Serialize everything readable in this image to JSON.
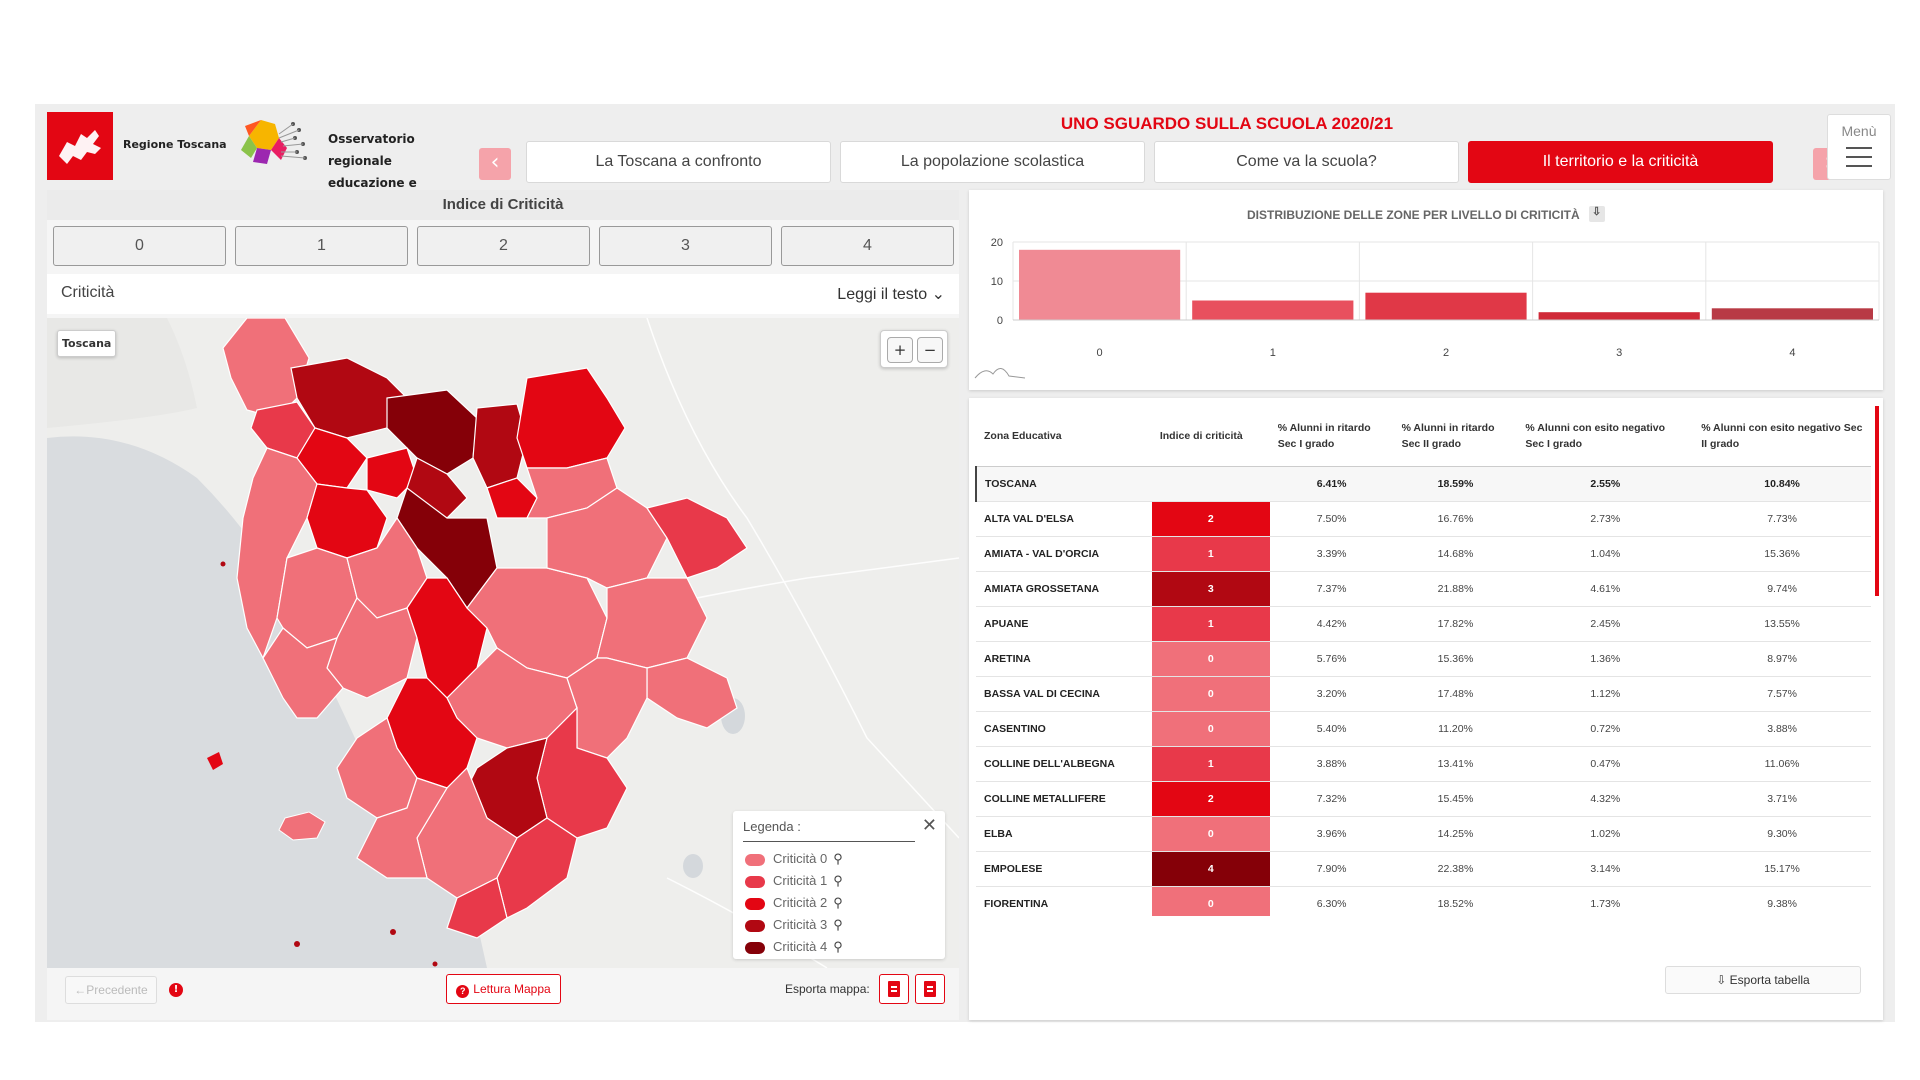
{
  "header": {
    "region_name": "Regione Toscana",
    "observatory_name": "Osservatorio regionale educazione e istruzione",
    "title": "UNO SGUARDO SULLA SCUOLA 2020/21",
    "tabs": [
      {
        "label": "La Toscana a confronto",
        "active": false
      },
      {
        "label": "La popolazione scolastica",
        "active": false
      },
      {
        "label": "Come va la scuola?",
        "active": false
      },
      {
        "label": "Il territorio e la criticità",
        "active": true
      }
    ],
    "prev_arrow": "‹",
    "next_arrow": "›",
    "menu_label": "Menù"
  },
  "left": {
    "title": "Indice di Criticità",
    "levels": [
      "0",
      "1",
      "2",
      "3",
      "4"
    ],
    "criticita_label": "Criticità",
    "read_text": "Leggi il testo",
    "map_region_badge": "Toscana",
    "zoom_in": "+",
    "zoom_out": "−",
    "legend": {
      "title": "Legenda :",
      "close": "✕",
      "items": [
        {
          "label": "Criticità 0",
          "color": "#f0707a"
        },
        {
          "label": "Criticità 1",
          "color": "#e8394a"
        },
        {
          "label": "Criticità 2",
          "color": "#e30613"
        },
        {
          "label": "Criticità 3",
          "color": "#b10812"
        },
        {
          "label": "Criticità 4",
          "color": "#850008"
        }
      ]
    },
    "prev_button": "Precedente",
    "lettura_button": "Lettura Mappa",
    "export_label": "Esporta mappa:"
  },
  "chart_data": {
    "type": "bar",
    "title": "DISTRIBUZIONE DELLE ZONE PER LIVELLO DI CRITICITÀ",
    "categories": [
      "0",
      "1",
      "2",
      "3",
      "4"
    ],
    "values": [
      18,
      5,
      7,
      2,
      3
    ],
    "colors": [
      "#f08a94",
      "#e8505e",
      "#e03847",
      "#d02a38",
      "#b83a45"
    ],
    "y_ticks": [
      "0",
      "10",
      "20"
    ],
    "ylim": [
      0,
      20
    ]
  },
  "table": {
    "headers": [
      "Zona Educativa",
      "Indice di criticità",
      "% Alunni in ritardo Sec I grado",
      "% Alunni in ritardo Sec II grado",
      "% Alunni con esito negativo Sec I grado",
      "% Alunni con esito negativo Sec II grado"
    ],
    "total": {
      "zona": "TOSCANA",
      "indice": "",
      "r1": "6.41%",
      "r2": "18.59%",
      "e1": "2.55%",
      "e2": "10.84%"
    },
    "rows": [
      {
        "zona": "ALTA VAL D'ELSA",
        "indice": "2",
        "r1": "7.50%",
        "r2": "16.76%",
        "e1": "2.73%",
        "e2": "7.73%"
      },
      {
        "zona": "AMIATA - VAL D'ORCIA",
        "indice": "1",
        "r1": "3.39%",
        "r2": "14.68%",
        "e1": "1.04%",
        "e2": "15.36%"
      },
      {
        "zona": "AMIATA GROSSETANA",
        "indice": "3",
        "r1": "7.37%",
        "r2": "21.88%",
        "e1": "4.61%",
        "e2": "9.74%"
      },
      {
        "zona": "APUANE",
        "indice": "1",
        "r1": "4.42%",
        "r2": "17.82%",
        "e1": "2.45%",
        "e2": "13.55%"
      },
      {
        "zona": "ARETINA",
        "indice": "0",
        "r1": "5.76%",
        "r2": "15.36%",
        "e1": "1.36%",
        "e2": "8.97%"
      },
      {
        "zona": "BASSA VAL DI CECINA",
        "indice": "0",
        "r1": "3.20%",
        "r2": "17.48%",
        "e1": "1.12%",
        "e2": "7.57%"
      },
      {
        "zona": "CASENTINO",
        "indice": "0",
        "r1": "5.40%",
        "r2": "11.20%",
        "e1": "0.72%",
        "e2": "3.88%"
      },
      {
        "zona": "COLLINE DELL'ALBEGNA",
        "indice": "1",
        "r1": "3.88%",
        "r2": "13.41%",
        "e1": "0.47%",
        "e2": "11.06%"
      },
      {
        "zona": "COLLINE METALLIFERE",
        "indice": "2",
        "r1": "7.32%",
        "r2": "15.45%",
        "e1": "4.32%",
        "e2": "3.71%"
      },
      {
        "zona": "ELBA",
        "indice": "0",
        "r1": "3.96%",
        "r2": "14.25%",
        "e1": "1.02%",
        "e2": "9.30%"
      },
      {
        "zona": "EMPOLESE",
        "indice": "4",
        "r1": "7.90%",
        "r2": "22.38%",
        "e1": "3.14%",
        "e2": "15.17%"
      },
      {
        "zona": "FIORENTINA",
        "indice": "0",
        "r1": "6.30%",
        "r2": "18.52%",
        "e1": "1.73%",
        "e2": "9.38%"
      }
    ],
    "export_button": "Esporta tabella"
  }
}
